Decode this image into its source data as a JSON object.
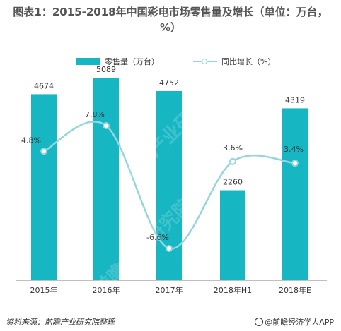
{
  "title": "图表1：2015-2018年中国彩电市场零售量及增长（单位：万台，%）",
  "legend": {
    "bar_label": "零售量（万台）",
    "line_label": "同比增长（%）"
  },
  "footer": {
    "source": "资料来源：前瞻产业研究院整理",
    "brand": "@前瞻经济学人APP"
  },
  "watermark_text": "前瞻产业研究院",
  "colors": {
    "bar": "#16b6c3",
    "line": "#95d6de",
    "text": "#333333"
  },
  "chart_data": {
    "type": "bar",
    "categories": [
      "2015年",
      "2016年",
      "2017年",
      "2018年H1",
      "2018年E"
    ],
    "series": [
      {
        "name": "零售量（万台）",
        "type": "bar",
        "values": [
          4674,
          5089,
          4752,
          2260,
          4319
        ]
      },
      {
        "name": "同比增长（%）",
        "type": "line",
        "values": [
          4.8,
          7.8,
          -6.6,
          3.6,
          3.4
        ],
        "labels": [
          "4.8%",
          "7.8%",
          "-6.6%",
          "3.6%",
          "3.4%"
        ]
      }
    ],
    "title": "图表1：2015-2018年中国彩电市场零售量及增长（单位：万台，%）",
    "legend_position": "top",
    "grid": false
  }
}
